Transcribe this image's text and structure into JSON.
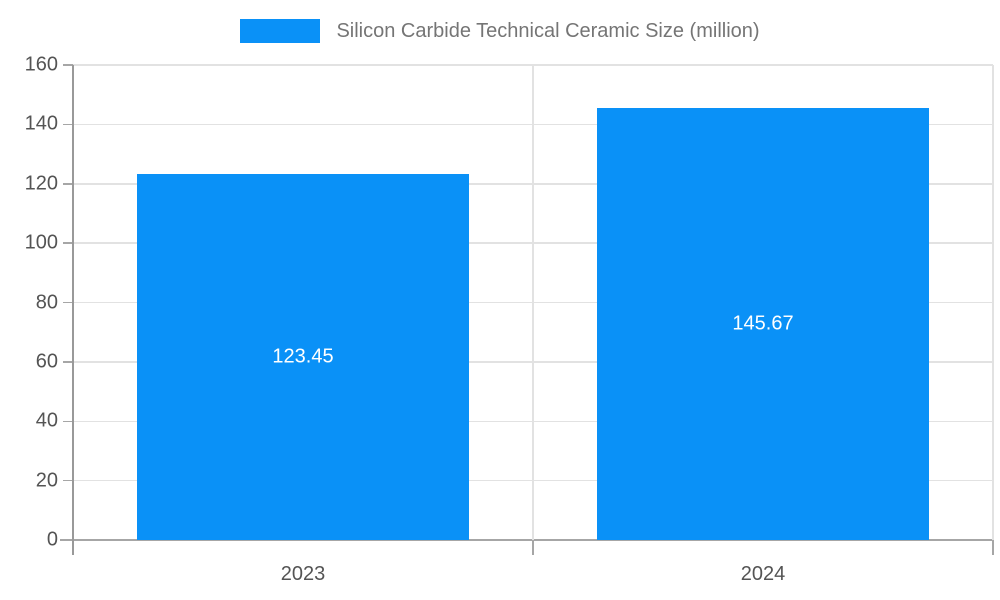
{
  "chart_data": {
    "type": "bar",
    "title": "Silicon Carbide Technical Ceramic Size (million)",
    "categories": [
      "2023",
      "2024"
    ],
    "values": [
      123.45,
      145.67
    ],
    "value_labels": [
      "123.45",
      "145.67"
    ],
    "series": [
      {
        "name": "Silicon Carbide Technical Ceramic Size (million)",
        "values": [
          123.45,
          145.67
        ]
      }
    ],
    "xlabel": "",
    "ylabel": "",
    "ylim": [
      0,
      160
    ],
    "ytick_step": 20,
    "ytick_labels": [
      "0",
      "20",
      "40",
      "60",
      "80",
      "100",
      "120",
      "140",
      "160"
    ],
    "grid": true,
    "legend_position": "top-center",
    "bar_color": "#0a91f7",
    "value_label_color": "#ffffff"
  },
  "colors": {
    "background": "#ffffff",
    "grid_line": "#e2e2e2",
    "axis_line": "#999999",
    "bottom_line": "#a6a6a6",
    "tick_mark": "#a6a6a6",
    "tick_label": "#545454",
    "legend_text": "#757575"
  }
}
